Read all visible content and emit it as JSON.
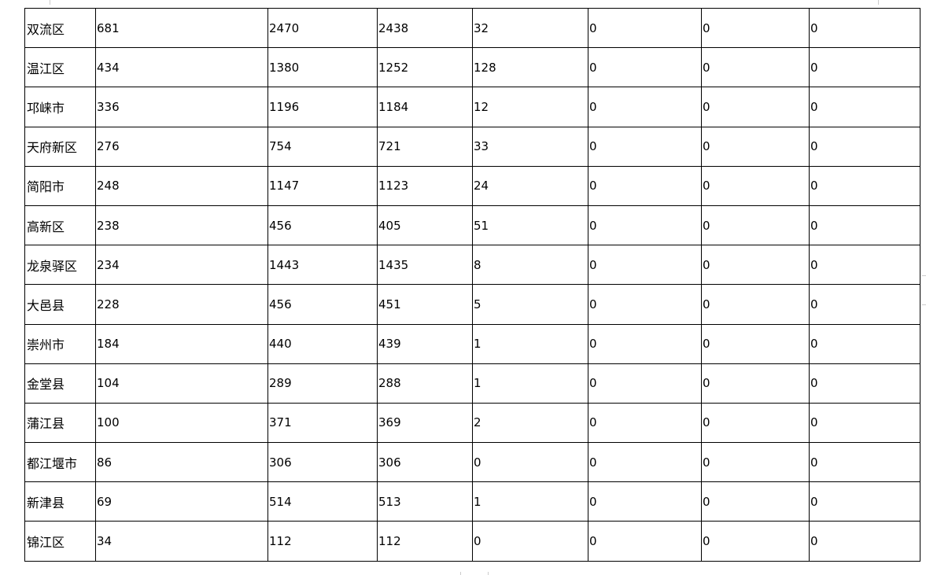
{
  "table": {
    "rows": [
      [
        "双流区",
        "681",
        "2470",
        "2438",
        "32",
        "0",
        "0",
        "0"
      ],
      [
        "温江区",
        "434",
        "1380",
        "1252",
        "128",
        "0",
        "0",
        "0"
      ],
      [
        "邛崃市",
        "336",
        "1196",
        "1184",
        "12",
        "0",
        "0",
        "0"
      ],
      [
        "天府新区",
        "276",
        "754",
        "721",
        "33",
        "0",
        "0",
        "0"
      ],
      [
        "简阳市",
        "248",
        "1147",
        "1123",
        "24",
        "0",
        "0",
        "0"
      ],
      [
        "高新区",
        "238",
        "456",
        "405",
        "51",
        "0",
        "0",
        "0"
      ],
      [
        "龙泉驿区",
        "234",
        "1443",
        "1435",
        "8",
        "0",
        "0",
        "0"
      ],
      [
        "大邑县",
        "228",
        "456",
        "451",
        "5",
        "0",
        "0",
        "0"
      ],
      [
        "崇州市",
        "184",
        "440",
        "439",
        "1",
        "0",
        "0",
        "0"
      ],
      [
        "金堂县",
        "104",
        "289",
        "288",
        "1",
        "0",
        "0",
        "0"
      ],
      [
        "蒲江县",
        "100",
        "371",
        "369",
        "2",
        "0",
        "0",
        "0"
      ],
      [
        "都江堰市",
        "86",
        "306",
        "306",
        "0",
        "0",
        "0",
        "0"
      ],
      [
        "新津县",
        "69",
        "514",
        "513",
        "1",
        "0",
        "0",
        "0"
      ],
      [
        "锦江区",
        "34",
        "112",
        "112",
        "0",
        "0",
        "0",
        "0"
      ]
    ]
  }
}
